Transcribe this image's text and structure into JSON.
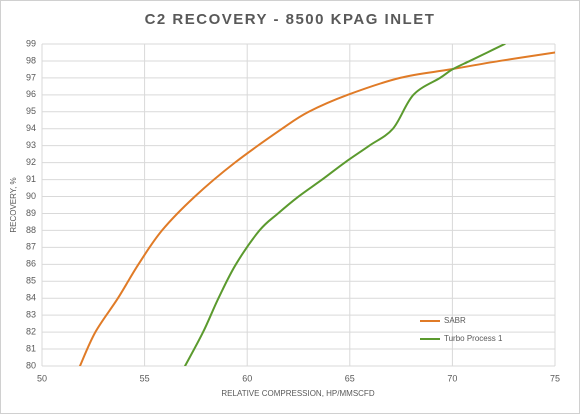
{
  "chart_data": {
    "type": "line",
    "title": "C2 RECOVERY - 8500 KPAG INLET",
    "x_label": "RELATIVE COMPRESSION, HP/MMSCFD",
    "y_label": "RECOVERY, %",
    "series": [
      {
        "name": "SABR",
        "color": "#e07b27",
        "x": [
          51.85,
          52.6,
          53.7,
          54.7,
          55.85,
          57.45,
          59.4,
          61.7,
          63,
          64.9,
          67.45,
          69.9,
          72.3,
          75
        ],
        "values": [
          80,
          82,
          84,
          86,
          88,
          90,
          92,
          94,
          95,
          96,
          97,
          97.5,
          98,
          98.5
        ]
      },
      {
        "name": "Turbo Process 1",
        "color": "#5b9a2e",
        "x": [
          56.97,
          57.85,
          58.6,
          59.45,
          60.6,
          61.5,
          62.5,
          63.65,
          64.75,
          65.95,
          67.1,
          68.1,
          69.4,
          70,
          70.85,
          71.7,
          72.55
        ],
        "values": [
          80,
          82,
          84,
          86,
          88,
          89,
          90,
          91,
          92,
          93,
          94,
          96,
          97,
          97.5,
          98,
          98.5,
          99
        ]
      }
    ],
    "xlim": [
      50,
      75
    ],
    "xticks": [
      50,
      55,
      60,
      65,
      70,
      75
    ],
    "ylim": [
      80,
      99
    ],
    "yticks": [
      80,
      81,
      82,
      83,
      84,
      85,
      86,
      87,
      88,
      89,
      90,
      91,
      92,
      93,
      94,
      95,
      96,
      97,
      98,
      99
    ],
    "grid": true,
    "legend": "lower right"
  }
}
